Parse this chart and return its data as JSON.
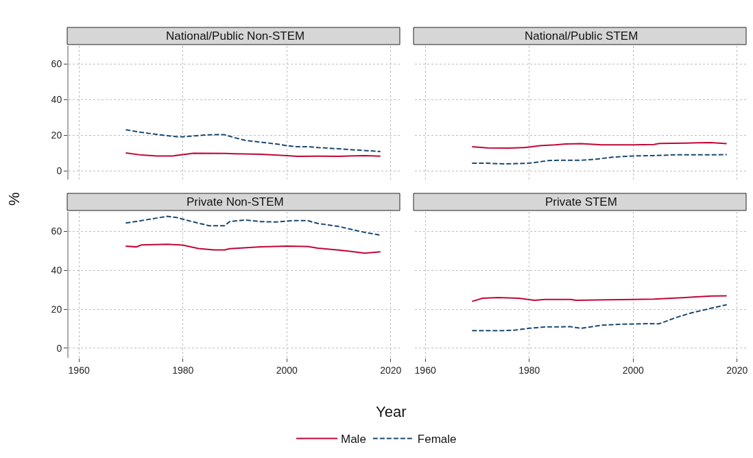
{
  "chart_data": [
    {
      "type": "line",
      "title": "National/Public Non-STEM",
      "ylabel": "%",
      "xlim": [
        1958,
        2022
      ],
      "ylim": [
        -5,
        70
      ],
      "xticks": [
        1960,
        1980,
        2000,
        2020
      ],
      "yticks": [
        0,
        20,
        40,
        60
      ],
      "grid": true,
      "legend": "bottom",
      "tick_labels": "y",
      "series": [
        {
          "name": "Male",
          "color": "#c10534",
          "line_style": "solid",
          "x": [
            1969,
            1972,
            1975,
            1978,
            1980,
            1982,
            1988,
            1990,
            1995,
            2000,
            2002,
            2006,
            2010,
            2015,
            2018
          ],
          "values": [
            10,
            8.8,
            8.3,
            8.3,
            9,
            9.8,
            9.7,
            9.5,
            9.2,
            8.5,
            8.1,
            8.2,
            8.1,
            8.5,
            8.2
          ]
        },
        {
          "name": "Female",
          "color": "#1a476f",
          "line_style": "dashed",
          "x": [
            1969,
            1972,
            1976,
            1979,
            1980,
            1984,
            1987,
            1988,
            1990,
            1992,
            1995,
            1998,
            2000,
            2002,
            2004,
            2006,
            2010,
            2014,
            2018
          ],
          "values": [
            23,
            21.5,
            20,
            19,
            19,
            20,
            20.3,
            20.2,
            18.5,
            17,
            16,
            15,
            14,
            13.5,
            13.5,
            13,
            12.3,
            11.5,
            10.8
          ]
        }
      ]
    },
    {
      "type": "line",
      "title": "National/Public STEM",
      "xlim": [
        1958,
        2022
      ],
      "ylim": [
        -5,
        70
      ],
      "xticks": [
        1960,
        1980,
        2000,
        2020
      ],
      "yticks": [
        0,
        20,
        40,
        60
      ],
      "grid": true,
      "tick_labels": false,
      "series": [
        {
          "name": "Male",
          "color": "#c10534",
          "line_style": "solid",
          "x": [
            1969,
            1972,
            1976,
            1979,
            1980,
            1982,
            1985,
            1987,
            1990,
            1994,
            2000,
            2004,
            2005,
            2010,
            2015,
            2018
          ],
          "values": [
            13.5,
            12.8,
            12.7,
            13,
            13.3,
            14,
            14.5,
            15,
            15.2,
            14.5,
            14.5,
            14.7,
            15.3,
            15.5,
            15.8,
            15.2
          ]
        },
        {
          "name": "Female",
          "color": "#1a476f",
          "line_style": "dashed",
          "x": [
            1969,
            1972,
            1975,
            1980,
            1982,
            1984,
            1990,
            1993,
            1996,
            2000,
            2004,
            2008,
            2018
          ],
          "values": [
            4.2,
            4.2,
            3.8,
            4.2,
            5,
            5.8,
            5.9,
            6.5,
            7.6,
            8.3,
            8.5,
            8.9,
            9
          ]
        }
      ]
    },
    {
      "type": "line",
      "title": "Private Non-STEM",
      "xlabel": "Year",
      "xlim": [
        1958,
        2022
      ],
      "ylim": [
        -5,
        70
      ],
      "xticks": [
        1960,
        1980,
        2000,
        2020
      ],
      "yticks": [
        0,
        20,
        40,
        60
      ],
      "grid": true,
      "series": [
        {
          "name": "Male",
          "color": "#c10534",
          "line_style": "solid",
          "x": [
            1969,
            1971,
            1972,
            1977,
            1980,
            1983,
            1986,
            1988,
            1989,
            1995,
            2000,
            2004,
            2006,
            2010,
            2015,
            2018
          ],
          "values": [
            52.4,
            52,
            53,
            53.4,
            52.9,
            51.2,
            50.5,
            50.5,
            51.1,
            52,
            52.4,
            52.2,
            51.3,
            50.4,
            48.8,
            49.5
          ]
        },
        {
          "name": "Female",
          "color": "#1a476f",
          "line_style": "dashed",
          "x": [
            1969,
            1972,
            1977,
            1979,
            1981,
            1985,
            1988,
            1989,
            1992,
            1995,
            1998,
            2001,
            2004,
            2006,
            2010,
            2014,
            2018
          ],
          "values": [
            64.3,
            65.5,
            67.7,
            67,
            65.5,
            62.9,
            62.9,
            65,
            65.8,
            65,
            64.8,
            65.5,
            65.5,
            64,
            62.5,
            60,
            58
          ]
        }
      ]
    },
    {
      "type": "line",
      "title": "Private STEM",
      "xlim": [
        1958,
        2022
      ],
      "ylim": [
        -5,
        70
      ],
      "xticks": [
        1960,
        1980,
        2000,
        2020
      ],
      "yticks": [
        0,
        20,
        40,
        60
      ],
      "grid": true,
      "tick_labels": "x",
      "series": [
        {
          "name": "Male",
          "color": "#c10534",
          "line_style": "solid",
          "x": [
            1969,
            1971,
            1974,
            1978,
            1981,
            1983,
            1988,
            1989,
            1995,
            2000,
            2004,
            2010,
            2015,
            2018
          ],
          "values": [
            24,
            25.6,
            26,
            25.6,
            24.6,
            25,
            25,
            24.6,
            24.8,
            25,
            25.2,
            26,
            26.8,
            26.9
          ]
        },
        {
          "name": "Female",
          "color": "#1a476f",
          "line_style": "dashed",
          "x": [
            1969,
            1975,
            1977,
            1980,
            1983,
            1988,
            1990,
            1994,
            1998,
            2003,
            2005,
            2008,
            2011,
            2015,
            2018
          ],
          "values": [
            9,
            9,
            9.2,
            10.2,
            10.9,
            11,
            10.2,
            11.8,
            12.3,
            12.6,
            12.5,
            15.5,
            18,
            20.5,
            22.3
          ]
        }
      ]
    }
  ]
}
